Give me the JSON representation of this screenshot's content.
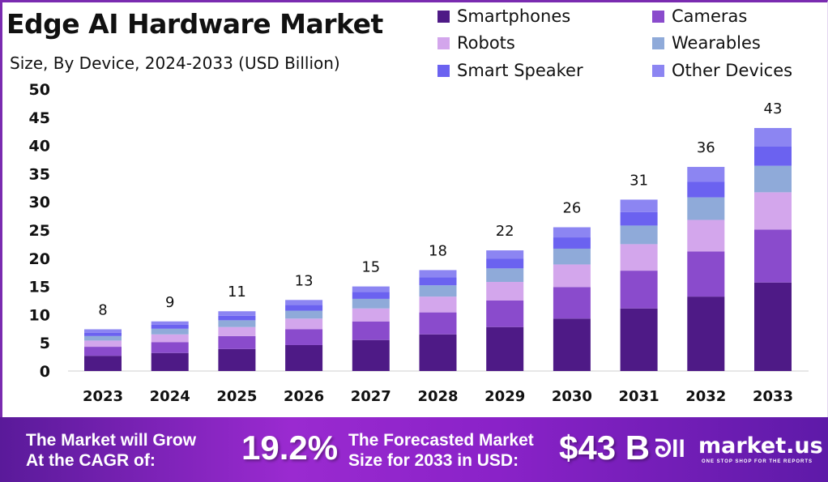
{
  "header": {
    "title": "Edge AI Hardware Market",
    "subtitle": "Size, By Device, 2024-2033 (USD Billion)"
  },
  "colors": {
    "Smartphones": "#4e1a86",
    "Cameras": "#8a4bcc",
    "Robots": "#d3a6ec",
    "Wearables": "#8faad9",
    "Smart Speaker": "#6b62f0",
    "Other Devices": "#8c85f2"
  },
  "chart_data": {
    "type": "bar",
    "stacked": true,
    "title": "Edge AI Hardware Market",
    "subtitle": "Size, By Device, 2024-2033 (USD Billion)",
    "xlabel": "",
    "ylabel": "",
    "ylim": [
      0,
      50
    ],
    "yticks": [
      0,
      5,
      10,
      15,
      20,
      25,
      30,
      35,
      40,
      45,
      50
    ],
    "grid": false,
    "legend": "top-right",
    "categories": [
      "2023",
      "2024",
      "2025",
      "2026",
      "2027",
      "2028",
      "2029",
      "2030",
      "2031",
      "2032",
      "2033"
    ],
    "totals_labels": [
      "8",
      "9",
      "11",
      "13",
      "15",
      "18",
      "22",
      "26",
      "31",
      "36",
      "43"
    ],
    "series": [
      {
        "name": "Smartphones",
        "values": [
          2.7,
          3.2,
          3.9,
          4.6,
          5.5,
          6.5,
          7.8,
          9.3,
          11.1,
          13.2,
          15.7
        ]
      },
      {
        "name": "Cameras",
        "values": [
          1.6,
          1.9,
          2.3,
          2.8,
          3.3,
          3.9,
          4.7,
          5.6,
          6.7,
          8.0,
          9.4
        ]
      },
      {
        "name": "Robots",
        "values": [
          1.1,
          1.4,
          1.6,
          1.9,
          2.3,
          2.8,
          3.3,
          4.0,
          4.7,
          5.6,
          6.6
        ]
      },
      {
        "name": "Wearables",
        "values": [
          0.8,
          1.0,
          1.2,
          1.4,
          1.7,
          2.0,
          2.4,
          2.8,
          3.3,
          4.0,
          4.7
        ]
      },
      {
        "name": "Smart Speaker",
        "values": [
          0.6,
          0.7,
          0.8,
          1.0,
          1.2,
          1.4,
          1.7,
          2.0,
          2.4,
          2.8,
          3.4
        ]
      },
      {
        "name": "Other Devices",
        "values": [
          0.6,
          0.6,
          0.8,
          0.9,
          1.0,
          1.3,
          1.5,
          1.8,
          2.2,
          2.6,
          3.3
        ]
      }
    ]
  },
  "banner": {
    "cagr_text_line1": "The Market will Grow",
    "cagr_text_line2": "At the CAGR of:",
    "cagr_value": "19.2%",
    "forecast_text_line1": "The Forecasted Market",
    "forecast_text_line2": "Size for 2033 in USD:",
    "forecast_value": "$43 B",
    "logo_text": "market.us",
    "logo_tagline": "ONE STOP SHOP FOR THE REPORTS"
  }
}
